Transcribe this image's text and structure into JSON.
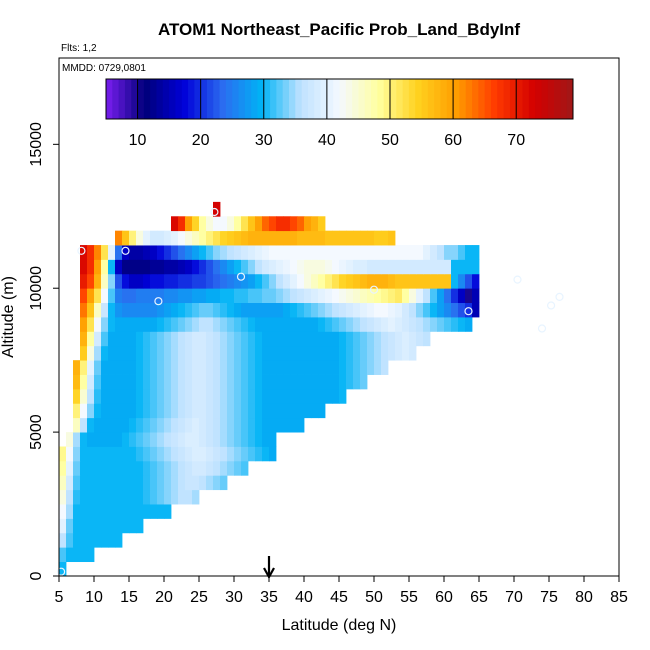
{
  "chart_data": {
    "type": "heatmap",
    "title": "ATOM1 Northeast_Pacific Prob_Land_BdyInf",
    "annotations": {
      "flights": "Flts: 1,2",
      "dates": "MMDD: 0729,0801"
    },
    "xlabel": "Latitude (deg N)",
    "ylabel": "Altitude (m)",
    "xlim": [
      5,
      85
    ],
    "ylim": [
      0,
      18000
    ],
    "x_ticks": [
      5,
      10,
      15,
      20,
      25,
      30,
      35,
      40,
      45,
      50,
      55,
      60,
      65,
      70,
      75,
      80,
      85
    ],
    "y_ticks": [
      0,
      5000,
      10000,
      15000
    ],
    "colorbar": {
      "range": [
        5,
        79
      ],
      "ticks": [
        10,
        20,
        30,
        40,
        50,
        60,
        70
      ],
      "colors": [
        "#7a1ff0",
        "#00007a",
        "#0000d8",
        "#2b6cf0",
        "#00b3f5",
        "#bfe2ff",
        "#f4f9ff",
        "#ffffa0",
        "#ffd21f",
        "#ff9d00",
        "#ff3a00",
        "#d40000",
        "#a01818"
      ]
    },
    "cell_size": {
      "lat": 1,
      "alt": 500
    },
    "grid": {
      "note": "approximate gridded values: each row = altitude band [alt, alt+500] m, values listed from lat0 in 1-degree steps",
      "rows": [
        {
          "alt": 0,
          "lat0": 5,
          "values": [
            30
          ]
        },
        {
          "alt": 500,
          "lat0": 5,
          "values": [
            32,
            30,
            30,
            30,
            30
          ]
        },
        {
          "alt": 1000,
          "lat0": 5,
          "values": [
            36,
            32,
            30,
            30,
            30,
            30,
            30,
            30,
            30
          ]
        },
        {
          "alt": 1500,
          "lat0": 5,
          "values": [
            40,
            33,
            30,
            30,
            30,
            30,
            30,
            30,
            30,
            30,
            30,
            30
          ]
        },
        {
          "alt": 2000,
          "lat0": 5,
          "values": [
            42,
            35,
            30,
            30,
            30,
            30,
            30,
            30,
            30,
            30,
            30,
            30,
            30,
            30,
            30,
            30
          ]
        },
        {
          "alt": 2500,
          "lat0": 5,
          "values": [
            44,
            36,
            31,
            30,
            30,
            30,
            30,
            30,
            30,
            30,
            30,
            30,
            31,
            32,
            33,
            34,
            35,
            36,
            36,
            35
          ]
        },
        {
          "alt": 3000,
          "lat0": 5,
          "values": [
            46,
            38,
            32,
            30,
            30,
            30,
            30,
            30,
            30,
            30,
            30,
            30,
            31,
            32,
            33,
            34,
            35,
            36,
            37,
            37,
            36,
            35,
            34,
            33
          ]
        },
        {
          "alt": 3500,
          "lat0": 5,
          "values": [
            48,
            40,
            33,
            30,
            30,
            30,
            30,
            30,
            30,
            30,
            30,
            30,
            31,
            32,
            33,
            34,
            35,
            36,
            37,
            38,
            38,
            37,
            36,
            35,
            34,
            33,
            32
          ]
        },
        {
          "alt": 4000,
          "lat0": 5,
          "values": [
            49,
            42,
            34,
            30,
            30,
            30,
            30,
            30,
            30,
            30,
            30,
            31,
            32,
            33,
            34,
            35,
            36,
            37,
            38,
            39,
            39,
            38,
            37,
            36,
            35,
            34,
            33,
            32,
            31,
            30,
            29
          ]
        },
        {
          "alt": 4500,
          "lat0": 6,
          "values": [
            44,
            35,
            30,
            29,
            29,
            29,
            29,
            29,
            30,
            31,
            32,
            33,
            34,
            35,
            36,
            37,
            38,
            39,
            39,
            38,
            37,
            36,
            35,
            34,
            33,
            32,
            31,
            30,
            29,
            29
          ]
        },
        {
          "alt": 5000,
          "lat0": 7,
          "values": [
            46,
            36,
            30,
            29,
            29,
            29,
            29,
            29,
            30,
            31,
            32,
            33,
            34,
            35,
            36,
            37,
            38,
            39,
            38,
            37,
            36,
            35,
            34,
            33,
            32,
            31,
            30,
            29,
            29,
            29,
            29,
            29,
            29
          ]
        },
        {
          "alt": 5500,
          "lat0": 7,
          "values": [
            50,
            42,
            34,
            30,
            29,
            29,
            29,
            29,
            29,
            30,
            31,
            32,
            33,
            34,
            35,
            36,
            37,
            38,
            38,
            37,
            36,
            35,
            34,
            33,
            32,
            31,
            30,
            29,
            29,
            29,
            29,
            29,
            29,
            29,
            29,
            29
          ]
        },
        {
          "alt": 6000,
          "lat0": 7,
          "values": [
            54,
            45,
            36,
            31,
            29,
            29,
            29,
            29,
            29,
            30,
            31,
            32,
            33,
            34,
            35,
            36,
            37,
            38,
            38,
            37,
            36,
            35,
            34,
            33,
            32,
            31,
            30,
            29,
            29,
            29,
            29,
            29,
            29,
            29,
            29,
            29,
            29,
            29,
            30
          ]
        },
        {
          "alt": 6500,
          "lat0": 7,
          "values": [
            57,
            48,
            38,
            32,
            29,
            29,
            29,
            29,
            29,
            30,
            31,
            32,
            33,
            34,
            35,
            36,
            37,
            38,
            38,
            37,
            36,
            35,
            34,
            33,
            32,
            31,
            30,
            29,
            29,
            29,
            29,
            29,
            29,
            29,
            29,
            29,
            29,
            29,
            30,
            31,
            32,
            33
          ]
        },
        {
          "alt": 7000,
          "lat0": 7,
          "values": [
            58,
            50,
            40,
            33,
            29,
            29,
            29,
            29,
            29,
            30,
            31,
            32,
            33,
            34,
            35,
            36,
            37,
            38,
            38,
            37,
            36,
            35,
            34,
            33,
            32,
            31,
            30,
            29,
            29,
            29,
            29,
            29,
            29,
            29,
            29,
            29,
            29,
            29,
            30,
            31,
            32,
            33,
            34,
            35,
            36
          ]
        },
        {
          "alt": 7500,
          "lat0": 8,
          "values": [
            55,
            44,
            35,
            30,
            29,
            29,
            29,
            29,
            30,
            31,
            32,
            33,
            34,
            35,
            36,
            37,
            38,
            38,
            37,
            36,
            35,
            34,
            33,
            32,
            31,
            30,
            29,
            29,
            29,
            29,
            29,
            29,
            29,
            29,
            29,
            29,
            29,
            30,
            31,
            32,
            33,
            34,
            35,
            36,
            37,
            38,
            39,
            38
          ]
        },
        {
          "alt": 8000,
          "lat0": 8,
          "values": [
            58,
            48,
            38,
            32,
            29,
            29,
            29,
            29,
            30,
            31,
            32,
            33,
            34,
            35,
            36,
            37,
            38,
            38,
            37,
            36,
            35,
            34,
            33,
            32,
            31,
            30,
            29,
            29,
            29,
            29,
            29,
            29,
            29,
            29,
            29,
            29,
            29,
            30,
            31,
            32,
            33,
            34,
            35,
            36,
            37,
            38,
            39,
            38,
            37,
            36
          ]
        },
        {
          "alt": 8500,
          "lat0": 8,
          "values": [
            60,
            52,
            42,
            34,
            30,
            29,
            29,
            29,
            29,
            29,
            29,
            30,
            31,
            32,
            33,
            34,
            35,
            36,
            36,
            35,
            34,
            33,
            32,
            31,
            30,
            29,
            29,
            29,
            29,
            29,
            29,
            29,
            29,
            29,
            30,
            31,
            32,
            33,
            34,
            35,
            36,
            37,
            38,
            39,
            40,
            39,
            38,
            37,
            36,
            35,
            34,
            33,
            32,
            31,
            30,
            29
          ]
        },
        {
          "alt": 9000,
          "lat0": 8,
          "values": [
            63,
            56,
            46,
            37,
            30,
            27,
            26,
            26,
            26,
            26,
            26,
            27,
            28,
            29,
            30,
            31,
            32,
            33,
            33,
            32,
            31,
            30,
            29,
            28,
            28,
            28,
            28,
            28,
            28,
            29,
            30,
            31,
            32,
            33,
            34,
            35,
            36,
            37,
            38,
            39,
            40,
            41,
            42,
            42,
            41,
            40,
            38,
            36,
            34,
            32,
            30,
            28,
            26,
            24,
            22,
            20,
            15
          ]
        },
        {
          "alt": 9500,
          "lat0": 8,
          "values": [
            66,
            60,
            52,
            42,
            32,
            25,
            24,
            24,
            25,
            25,
            25,
            25,
            26,
            26,
            27,
            27,
            28,
            28,
            29,
            29,
            30,
            30,
            31,
            31,
            32,
            32,
            33,
            33,
            34,
            35,
            36,
            37,
            38,
            39,
            40,
            41,
            42,
            43,
            44,
            45,
            46,
            47,
            48,
            49,
            50,
            51,
            48,
            44,
            40,
            36,
            32,
            28,
            24,
            20,
            16,
            10,
            15
          ]
        },
        {
          "alt": 10000,
          "lat0": 8,
          "values": [
            70,
            66,
            58,
            46,
            34,
            22,
            18,
            16,
            16,
            17,
            18,
            18,
            19,
            19,
            20,
            20,
            21,
            21,
            22,
            23,
            24,
            25,
            26,
            27,
            28,
            30,
            32,
            34,
            36,
            38,
            40,
            42,
            44,
            46,
            48,
            50,
            52,
            54,
            55,
            56,
            57,
            58,
            58,
            58,
            57,
            56,
            56,
            56,
            56,
            56,
            56,
            56,
            56,
            30,
            26,
            22,
            18
          ]
        },
        {
          "alt": 10500,
          "lat0": 8,
          "values": [
            72,
            68,
            60,
            48,
            30,
            16,
            12,
            12,
            12,
            12,
            13,
            13,
            14,
            14,
            15,
            16,
            18,
            20,
            22,
            24,
            26,
            28,
            30,
            32,
            34,
            36,
            38,
            39,
            40,
            41,
            42,
            43,
            44,
            44,
            44,
            43,
            42,
            41,
            40,
            39,
            39,
            38,
            38,
            38,
            38,
            38,
            38,
            38,
            38,
            38,
            38,
            38,
            38,
            30,
            30,
            30,
            30
          ]
        },
        {
          "alt": 11000,
          "lat0": 8,
          "values": [
            72,
            68,
            62,
            52,
            40,
            24,
            16,
            14,
            14,
            15,
            16,
            18,
            20,
            22,
            24,
            26,
            28,
            30,
            32,
            34,
            35,
            36,
            37,
            38,
            39,
            40,
            41,
            42,
            42,
            42,
            42,
            42,
            42,
            42,
            42,
            42,
            42,
            42,
            42,
            42,
            42,
            42,
            42,
            42,
            42,
            42,
            42,
            42,
            42,
            40,
            38,
            36,
            34,
            34,
            32,
            30,
            30
          ]
        },
        {
          "alt": 11500,
          "lat0": 13,
          "values": [
            62,
            56,
            50,
            44,
            40,
            38,
            38,
            39,
            40,
            42,
            44,
            46,
            48,
            50,
            52,
            54,
            55,
            56,
            57,
            58,
            58,
            58,
            58,
            58,
            58,
            58,
            57,
            57,
            57,
            57,
            56,
            56,
            56,
            56,
            56,
            56,
            56,
            55,
            55,
            56
          ]
        },
        {
          "alt": 12000,
          "lat0": 21,
          "values": [
            72,
            68,
            60,
            54,
            48,
            44,
            42,
            42,
            44,
            48,
            52,
            56,
            60,
            64,
            66,
            68,
            68,
            66,
            64,
            60,
            58,
            55
          ]
        },
        {
          "alt": 12500,
          "lat0": 27,
          "values": [
            73
          ]
        }
      ]
    },
    "markers": [
      {
        "lat": 8.2,
        "alt": 11300
      },
      {
        "lat": 14.5,
        "alt": 11300
      },
      {
        "lat": 27.2,
        "alt": 12650
      },
      {
        "lat": 31,
        "alt": 10400
      },
      {
        "lat": 19.2,
        "alt": 9550
      },
      {
        "lat": 50,
        "alt": 9950
      },
      {
        "lat": 63.5,
        "alt": 9200
      },
      {
        "lat": 70.5,
        "alt": 10300
      },
      {
        "lat": 74,
        "alt": 8600
      },
      {
        "lat": 75.3,
        "alt": 9400
      },
      {
        "lat": 76.5,
        "alt": 9700
      },
      {
        "lat": 5.3,
        "alt": 150
      }
    ],
    "arrow_marker_lat": 35
  }
}
